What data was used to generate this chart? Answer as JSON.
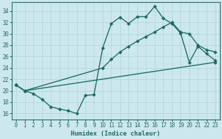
{
  "xlabel": "Humidex (Indice chaleur)",
  "bg_color": "#cce8ed",
  "grid_color": "#b0d8de",
  "line_color": "#1e6b60",
  "xlim": [
    -0.5,
    23.5
  ],
  "ylim": [
    15.0,
    35.5
  ],
  "xticks": [
    0,
    1,
    2,
    3,
    4,
    5,
    6,
    7,
    8,
    9,
    10,
    11,
    12,
    13,
    14,
    15,
    16,
    17,
    18,
    19,
    20,
    21,
    22,
    23
  ],
  "yticks": [
    16,
    18,
    20,
    22,
    24,
    26,
    28,
    30,
    32,
    34
  ],
  "line1_x": [
    0,
    1,
    2,
    3,
    4,
    5,
    6,
    7,
    8,
    9,
    10,
    11,
    12,
    13,
    14,
    15,
    16,
    17,
    18,
    19,
    20,
    21,
    22,
    23
  ],
  "line1_y": [
    21.0,
    20.0,
    19.5,
    18.5,
    17.2,
    16.8,
    16.5,
    16.0,
    19.2,
    19.3,
    27.5,
    31.8,
    32.9,
    31.8,
    33.0,
    33.0,
    34.8,
    32.7,
    31.8,
    30.1,
    25.0,
    27.8,
    26.5,
    25.3
  ],
  "line2_x": [
    0,
    1,
    10,
    11,
    12,
    13,
    14,
    15,
    16,
    17,
    18,
    19,
    20,
    21,
    22,
    23
  ],
  "line2_y": [
    21.0,
    20.0,
    24.0,
    25.5,
    26.8,
    27.8,
    28.7,
    29.5,
    30.3,
    31.2,
    32.0,
    30.3,
    30.0,
    28.0,
    27.2,
    26.8
  ],
  "line3_x": [
    0,
    1,
    23
  ],
  "line3_y": [
    21.0,
    20.0,
    25.0
  ]
}
